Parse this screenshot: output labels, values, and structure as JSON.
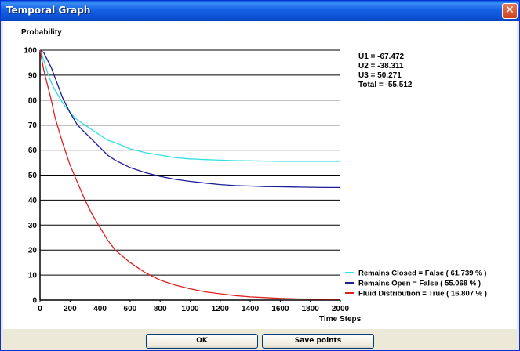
{
  "window": {
    "title": "Temporal Graph"
  },
  "utility": {
    "lines": [
      "U1 = -67.472",
      "U2 = -38.311",
      "U3 = 50.271",
      "Total = -55.512"
    ]
  },
  "buttons": {
    "ok": "OK",
    "save_points": "Save points"
  },
  "colors": {
    "remains_closed": "#33e0e0",
    "remains_open": "#1c1c9c",
    "fluid_distribution": "#dd2222",
    "title_bar": "#0a5fd8"
  },
  "icons": {
    "close": "close-x-icon"
  },
  "chart_data": {
    "type": "line",
    "ylabel": "Probability",
    "xlabel": "Time Steps",
    "xlim": [
      0,
      2000
    ],
    "ylim": [
      0,
      100
    ],
    "xticks": [
      0,
      200,
      400,
      600,
      800,
      1000,
      1200,
      1400,
      1600,
      1800,
      2000
    ],
    "yticks": [
      0,
      10,
      20,
      30,
      40,
      50,
      60,
      70,
      80,
      90,
      100
    ],
    "grid": "horizontal",
    "legend_position": "bottom-right",
    "x": [
      0,
      25,
      50,
      75,
      100,
      150,
      200,
      250,
      300,
      350,
      400,
      450,
      500,
      600,
      700,
      800,
      900,
      1000,
      1100,
      1200,
      1300,
      1400,
      1500,
      1600,
      1700,
      1800,
      1900,
      2000
    ],
    "series": [
      {
        "name": "Remains Closed = False ( 61.739 % )",
        "color": "#33e0e0",
        "values": [
          100,
          96,
          91,
          87,
          84,
          79,
          75,
          72,
          70,
          68,
          66,
          64,
          63,
          60.5,
          59,
          58,
          57,
          56.5,
          56.2,
          56,
          55.8,
          55.7,
          55.6,
          55.5,
          55.5,
          55.5,
          55.5,
          55.5
        ]
      },
      {
        "name": "Remains Open = False ( 55.068 % )",
        "color": "#1c1c9c",
        "values": [
          100,
          99,
          96,
          93,
          89,
          81,
          75,
          70,
          67,
          64,
          61,
          58,
          56,
          53,
          51,
          49.5,
          48.3,
          47.5,
          46.8,
          46.2,
          45.8,
          45.6,
          45.4,
          45.3,
          45.2,
          45.1,
          45,
          45
        ]
      },
      {
        "name": "Fluid Distribution = True ( 16.807 % )",
        "color": "#dd2222",
        "values": [
          100,
          92,
          86,
          80,
          73,
          63,
          54,
          47,
          40,
          34,
          29,
          24,
          20,
          15,
          11,
          8,
          6,
          4.5,
          3.3,
          2.5,
          1.8,
          1.3,
          1,
          0.7,
          0.5,
          0.4,
          0.3,
          0.3
        ]
      }
    ]
  }
}
